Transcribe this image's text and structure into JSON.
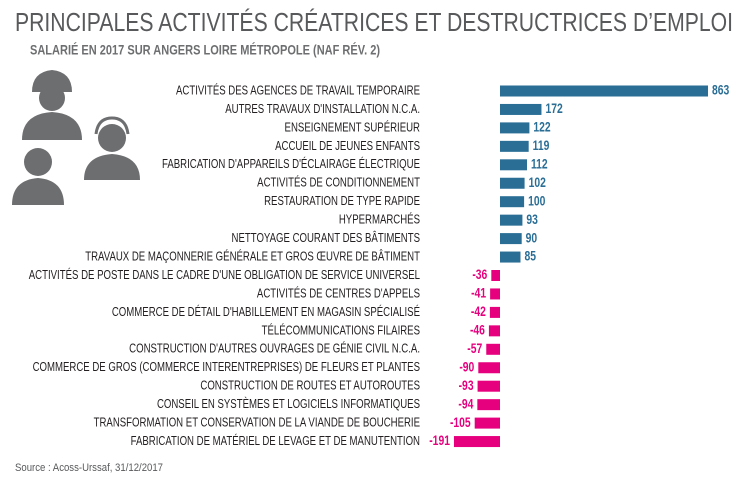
{
  "chart_data": {
    "type": "diverging-bar",
    "title": "PRINCIPALES ACTIVITÉS CRÉATRICES ET DESTRUCTRICES D’EMPLOI",
    "subtitle": "SALARIÉ EN 2017 SUR ANGERS LOIRE MÉTROPOLE (NAF RÉV. 2)",
    "source": "Source : Acoss-Urssaf, 31/12/2017",
    "categories": [
      "ACTIVITÉS DES AGENCES DE TRAVAIL TEMPORAIRE",
      "AUTRES TRAVAUX D'INSTALLATION N.C.A.",
      "ENSEIGNEMENT SUPÉRIEUR",
      "ACCUEIL DE JEUNES ENFANTS",
      "FABRICATION D'APPAREILS D'ÉCLAIRAGE ÉLECTRIQUE",
      "ACTIVITÉS DE CONDITIONNEMENT",
      "RESTAURATION DE TYPE RAPIDE",
      "HYPERMARCHÉS",
      "NETTOYAGE COURANT DES BÂTIMENTS",
      "TRAVAUX DE MAÇONNERIE GÉNÉRALE ET GROS ŒUVRE DE BÂTIMENT",
      "ACTIVITÉS DE POSTE DANS LE CADRE D'UNE OBLIGATION DE SERVICE UNIVERSEL",
      "ACTIVITÉS DE CENTRES D'APPELS",
      "COMMERCE DE DÉTAIL D'HABILLEMENT EN MAGASIN SPÉCIALISÉ",
      "TÉLÉCOMMUNICATIONS FILAIRES",
      "CONSTRUCTION D'AUTRES OUVRAGES DE GÉNIE CIVIL N.C.A.",
      "COMMERCE DE GROS (COMMERCE INTERENTREPRISES) DE FLEURS ET PLANTES",
      "CONSTRUCTION DE ROUTES ET AUTOROUTES",
      "CONSEIL EN SYSTÈMES ET LOGICIELS INFORMATIQUES",
      "TRANSFORMATION ET CONSERVATION DE LA VIANDE DE BOUCHERIE",
      "FABRICATION DE MATÉRIEL DE LEVAGE ET DE MANUTENTION"
    ],
    "values": [
      863,
      172,
      122,
      119,
      112,
      102,
      100,
      93,
      90,
      85,
      -36,
      -41,
      -42,
      -46,
      -57,
      -90,
      -93,
      -94,
      -105,
      -191
    ],
    "positive_color": "#2a6e96",
    "negative_color": "#e6007e"
  }
}
